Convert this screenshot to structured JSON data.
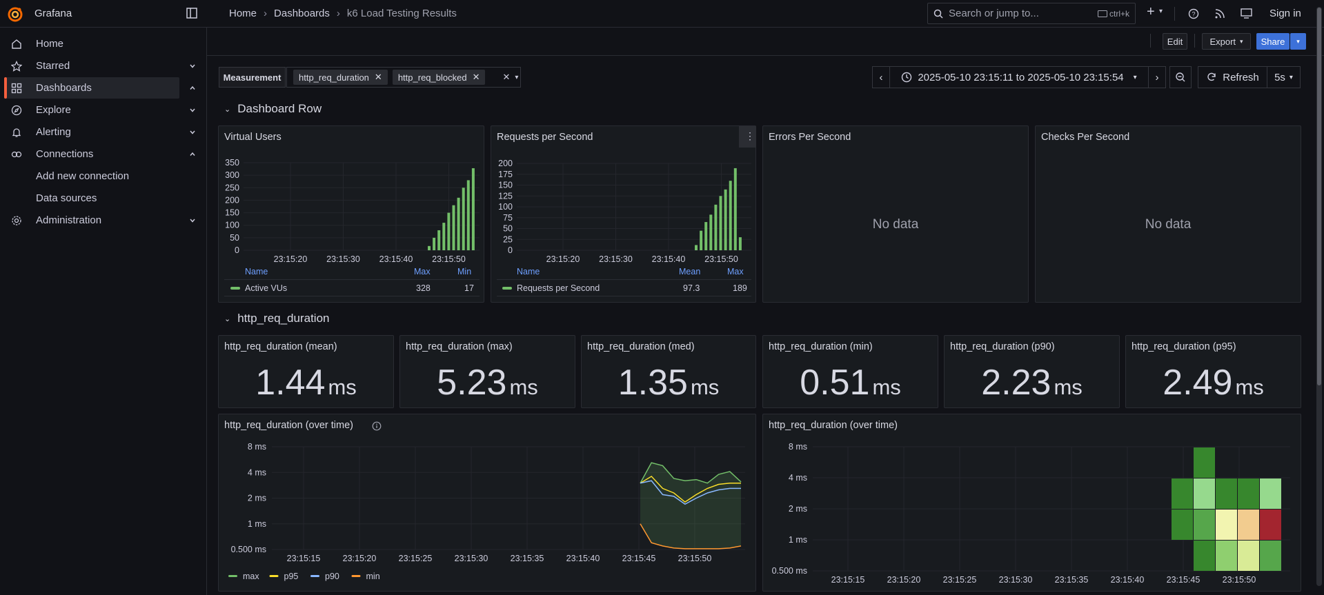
{
  "app": {
    "name": "Grafana",
    "signin": "Sign in"
  },
  "breadcrumb": {
    "home": "Home",
    "dashboards": "Dashboards",
    "current": "k6 Load Testing Results"
  },
  "search": {
    "placeholder": "Search or jump to...",
    "shortcut": "ctrl+k"
  },
  "sidebar": {
    "items": [
      {
        "label": "Home",
        "icon": "home-icon"
      },
      {
        "label": "Starred",
        "icon": "star-icon"
      },
      {
        "label": "Dashboards",
        "icon": "apps-icon"
      },
      {
        "label": "Explore",
        "icon": "compass-icon"
      },
      {
        "label": "Alerting",
        "icon": "bell-icon"
      },
      {
        "label": "Connections",
        "icon": "connections-icon"
      },
      {
        "label": "Administration",
        "icon": "cog-icon"
      }
    ],
    "subitems": [
      "Add new connection",
      "Data sources"
    ]
  },
  "toolbar": {
    "edit": "Edit",
    "export": "Export",
    "share": "Share"
  },
  "variables": {
    "label": "Measurement",
    "values": [
      "http_req_duration",
      "http_req_blocked"
    ]
  },
  "time": {
    "range": "2025-05-10 23:15:11 to 2025-05-10 23:15:54",
    "refresh": "Refresh",
    "interval": "5s"
  },
  "rows": {
    "first": "Dashboard Row",
    "second": "http_req_duration"
  },
  "panels": {
    "vus": {
      "title": "Virtual Users",
      "legend_name": "Name",
      "col1": "Max",
      "col2": "Min",
      "series": "Active VUs",
      "v1": "328",
      "v2": "17"
    },
    "rps": {
      "title": "Requests per Second",
      "legend_name": "Name",
      "col1": "Mean",
      "col2": "Max",
      "series": "Requests per Second",
      "v1": "97.3",
      "v2": "189"
    },
    "errors": {
      "title": "Errors Per Second",
      "nodata": "No data"
    },
    "checks": {
      "title": "Checks Per Second",
      "nodata": "No data"
    },
    "ts": {
      "title": "http_req_duration (over time)"
    },
    "heat": {
      "title": "http_req_duration (over time)"
    }
  },
  "stats": [
    {
      "title": "http_req_duration (mean)",
      "value": "1.44",
      "unit": "ms"
    },
    {
      "title": "http_req_duration (max)",
      "value": "5.23",
      "unit": "ms"
    },
    {
      "title": "http_req_duration (med)",
      "value": "1.35",
      "unit": "ms"
    },
    {
      "title": "http_req_duration (min)",
      "value": "0.51",
      "unit": "ms"
    },
    {
      "title": "http_req_duration (p90)",
      "value": "2.23",
      "unit": "ms"
    },
    {
      "title": "http_req_duration (p95)",
      "value": "2.49",
      "unit": "ms"
    }
  ],
  "chart_data": [
    {
      "type": "bar",
      "title": "Virtual Users",
      "x_ticks": [
        "23:15:20",
        "23:15:30",
        "23:15:40",
        "23:15:50"
      ],
      "yticks": [
        "350",
        "300",
        "250",
        "200",
        "150",
        "100",
        "50",
        "0"
      ],
      "ylim": [
        0,
        350
      ],
      "series": [
        {
          "name": "Active VUs",
          "values": [
            17,
            50,
            80,
            110,
            150,
            180,
            210,
            250,
            280,
            328
          ]
        }
      ],
      "color": "#73bf69"
    },
    {
      "type": "bar",
      "title": "Requests per Second",
      "x_ticks": [
        "23:15:20",
        "23:15:30",
        "23:15:40",
        "23:15:50"
      ],
      "yticks": [
        "200",
        "175",
        "150",
        "125",
        "100",
        "75",
        "50",
        "25",
        "0"
      ],
      "ylim": [
        0,
        200
      ],
      "series": [
        {
          "name": "Requests per Second",
          "values": [
            12,
            45,
            65,
            82,
            105,
            125,
            140,
            160,
            189,
            30
          ]
        }
      ],
      "color": "#73bf69"
    },
    {
      "type": "line",
      "title": "http_req_duration (over time)",
      "x_ticks": [
        "23:15:15",
        "23:15:20",
        "23:15:25",
        "23:15:30",
        "23:15:35",
        "23:15:40",
        "23:15:45",
        "23:15:50"
      ],
      "yticks": [
        "8 ms",
        "4 ms",
        "2 ms",
        "1 ms",
        "0.500 ms"
      ],
      "series": [
        {
          "name": "max",
          "color": "#73bf69",
          "values": [
            3.0,
            5.2,
            4.8,
            3.4,
            3.2,
            3.3,
            3.0,
            3.8,
            4.1,
            3.1
          ]
        },
        {
          "name": "p95",
          "color": "#fade2a",
          "values": [
            3.0,
            3.6,
            2.6,
            2.3,
            1.8,
            2.2,
            2.6,
            2.9,
            3.0,
            3.0
          ]
        },
        {
          "name": "p90",
          "color": "#8ab8ff",
          "values": [
            3.0,
            3.2,
            2.2,
            2.1,
            1.7,
            2.0,
            2.3,
            2.5,
            2.6,
            2.6
          ]
        },
        {
          "name": "min",
          "color": "#ff9830",
          "values": [
            1.0,
            0.6,
            0.55,
            0.52,
            0.51,
            0.51,
            0.51,
            0.51,
            0.52,
            0.55
          ]
        }
      ]
    },
    {
      "type": "heatmap",
      "title": "http_req_duration (over time)",
      "x_ticks": [
        "23:15:15",
        "23:15:20",
        "23:15:25",
        "23:15:30",
        "23:15:35",
        "23:15:40",
        "23:15:45",
        "23:15:50"
      ],
      "yticks": [
        "8 ms",
        "4 ms",
        "2 ms",
        "1 ms",
        "0.500 ms"
      ]
    }
  ]
}
